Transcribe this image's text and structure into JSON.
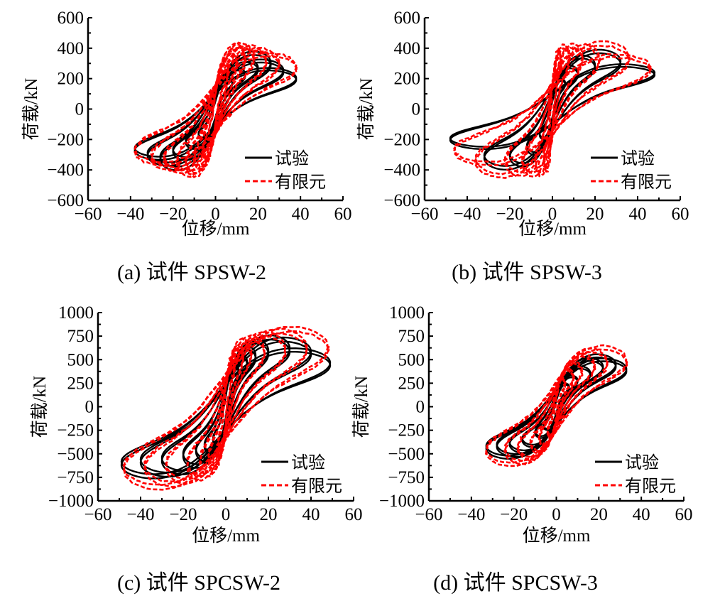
{
  "figure": {
    "legend": {
      "test_label": "试验",
      "fe_label": "有限元"
    },
    "colors": {
      "test": "#000000",
      "fe": "#ff0000"
    }
  },
  "chart_data": [
    {
      "id": "a",
      "type": "line",
      "caption": "(a)  试件 SPSW-2",
      "xlabel": "位移/mm",
      "ylabel": "荷载/kN",
      "xlim": [
        -60,
        60
      ],
      "ylim": [
        -600,
        600
      ],
      "xticks": [
        -60,
        -40,
        -20,
        0,
        20,
        40,
        60
      ],
      "xtick_labels": [
        "−60",
        "−40",
        "−20",
        "0",
        "20",
        "40",
        "60"
      ],
      "yticks": [
        600,
        400,
        200,
        0,
        -200,
        -400,
        -600
      ],
      "ytick_labels": [
        "600",
        "400",
        "200",
        "0",
        "−200",
        "−400",
        "−600"
      ],
      "legend_position": "bottom-right",
      "series": [
        {
          "name": "试验",
          "style": "solid",
          "color": "#000000",
          "cycles_disp_mm": [
            8,
            14,
            20,
            26,
            32,
            38
          ],
          "peak_load_pos_kN": [
            210,
            270,
            320,
            360,
            300,
            240
          ],
          "peak_load_neg_kN": [
            -200,
            -260,
            -330,
            -390,
            -360,
            -320
          ],
          "max_load_kN": 365,
          "min_load_kN": -395
        },
        {
          "name": "有限元",
          "style": "dashed",
          "color": "#ff0000",
          "cycles_disp_mm": [
            6,
            10,
            14,
            18,
            24,
            30,
            38
          ],
          "peak_load_pos_kN": [
            300,
            360,
            400,
            400,
            380,
            360,
            330
          ],
          "peak_load_neg_kN": [
            -330,
            -380,
            -420,
            -410,
            -390,
            -370,
            -330
          ],
          "max_load_kN": 405,
          "min_load_kN": -425
        }
      ]
    },
    {
      "id": "b",
      "type": "line",
      "caption": "(b)  试件 SPSW-3",
      "xlabel": "位移/mm",
      "ylabel": "荷载/kN",
      "xlim": [
        -60,
        60
      ],
      "ylim": [
        -600,
        600
      ],
      "xticks": [
        -60,
        -40,
        -20,
        0,
        20,
        40,
        60
      ],
      "xtick_labels": [
        "−60",
        "−40",
        "−20",
        "0",
        "20",
        "40",
        "60"
      ],
      "yticks": [
        600,
        400,
        200,
        0,
        -200,
        -400,
        -600
      ],
      "ytick_labels": [
        "600",
        "400",
        "200",
        "0",
        "−200",
        "−400",
        "−600"
      ],
      "legend_position": "bottom-right",
      "series": [
        {
          "name": "试验",
          "style": "solid",
          "color": "#000000",
          "cycles_disp_mm": [
            6,
            12,
            20,
            32,
            48
          ],
          "peak_load_pos_kN": [
            200,
            280,
            340,
            370,
            280
          ],
          "peak_load_neg_kN": [
            -200,
            -300,
            -370,
            -380,
            -240
          ],
          "max_load_kN": 385,
          "min_load_kN": -385
        },
        {
          "name": "有限元",
          "style": "dashed",
          "color": "#ff0000",
          "cycles_disp_mm": [
            4,
            8,
            14,
            22,
            36,
            46
          ],
          "peak_load_pos_kN": [
            380,
            400,
            400,
            390,
            400,
            320
          ],
          "peak_load_neg_kN": [
            -400,
            -420,
            -420,
            -410,
            -410,
            -330
          ],
          "max_load_kN": 410,
          "min_load_kN": -425
        }
      ]
    },
    {
      "id": "c",
      "type": "line",
      "caption": "(c)  试件 SPCSW-2",
      "xlabel": "位移/mm",
      "ylabel": "荷载/kN",
      "xlim": [
        -60,
        60
      ],
      "ylim": [
        -1000,
        1000
      ],
      "xticks": [
        -60,
        -40,
        -20,
        0,
        20,
        40,
        60
      ],
      "xtick_labels": [
        "−60",
        "−40",
        "−20",
        "0",
        "20",
        "40",
        "60"
      ],
      "yticks": [
        1000,
        750,
        500,
        250,
        0,
        -250,
        -500,
        -750,
        -1000
      ],
      "ytick_labels": [
        "1000",
        "750",
        "500",
        "250",
        "0",
        "−250",
        "−500",
        "−750",
        "−1000"
      ],
      "legend_position": "bottom-right",
      "series": [
        {
          "name": "试验",
          "style": "solid",
          "color": "#000000",
          "cycles_disp_mm": [
            6,
            10,
            14,
            20,
            30,
            40,
            49
          ],
          "peak_load_pos_kN": [
            450,
            560,
            640,
            700,
            730,
            690,
            550
          ],
          "peak_load_neg_kN": [
            -420,
            -500,
            -560,
            -620,
            -680,
            -700,
            -730
          ],
          "max_load_kN": 735,
          "min_load_kN": -735
        },
        {
          "name": "有限元",
          "style": "dashed",
          "color": "#ff0000",
          "cycles_disp_mm": [
            4,
            8,
            12,
            18,
            28,
            38,
            48
          ],
          "peak_load_pos_kN": [
            520,
            620,
            680,
            700,
            720,
            740,
            750
          ],
          "peak_load_neg_kN": [
            -550,
            -640,
            -700,
            -730,
            -750,
            -770,
            -790
          ],
          "max_load_kN": 755,
          "min_load_kN": -795
        }
      ]
    },
    {
      "id": "d",
      "type": "line",
      "caption": "(d)  试件 SPCSW-3",
      "xlabel": "位移/mm",
      "ylabel": "荷载/kN",
      "xlim": [
        -60,
        60
      ],
      "ylim": [
        -1000,
        1000
      ],
      "xticks": [
        -60,
        -40,
        -20,
        0,
        20,
        40,
        60
      ],
      "xtick_labels": [
        "−60",
        "−40",
        "−20",
        "0",
        "20",
        "40",
        "60"
      ],
      "yticks": [
        1000,
        750,
        500,
        250,
        0,
        -250,
        -500,
        -750,
        -1000
      ],
      "ytick_labels": [
        "1000",
        "750",
        "500",
        "250",
        "0",
        "−250",
        "−500",
        "−750",
        "−1000"
      ],
      "legend_position": "bottom-right",
      "series": [
        {
          "name": "试验",
          "style": "solid",
          "color": "#000000",
          "cycles_disp_mm": [
            6,
            10,
            16,
            22,
            28,
            33
          ],
          "peak_load_pos_kN": [
            250,
            330,
            420,
            500,
            530,
            470
          ],
          "peak_load_neg_kN": [
            -250,
            -330,
            -420,
            -470,
            -500,
            -520
          ],
          "max_load_kN": 535,
          "min_load_kN": -525
        },
        {
          "name": "有限元",
          "style": "dashed",
          "color": "#ff0000",
          "cycles_disp_mm": [
            4,
            8,
            12,
            18,
            24,
            33
          ],
          "peak_load_pos_kN": [
            300,
            380,
            450,
            520,
            560,
            580
          ],
          "peak_load_neg_kN": [
            -320,
            -400,
            -470,
            -520,
            -550,
            -560
          ],
          "max_load_kN": 585,
          "min_load_kN": -565
        }
      ]
    }
  ]
}
